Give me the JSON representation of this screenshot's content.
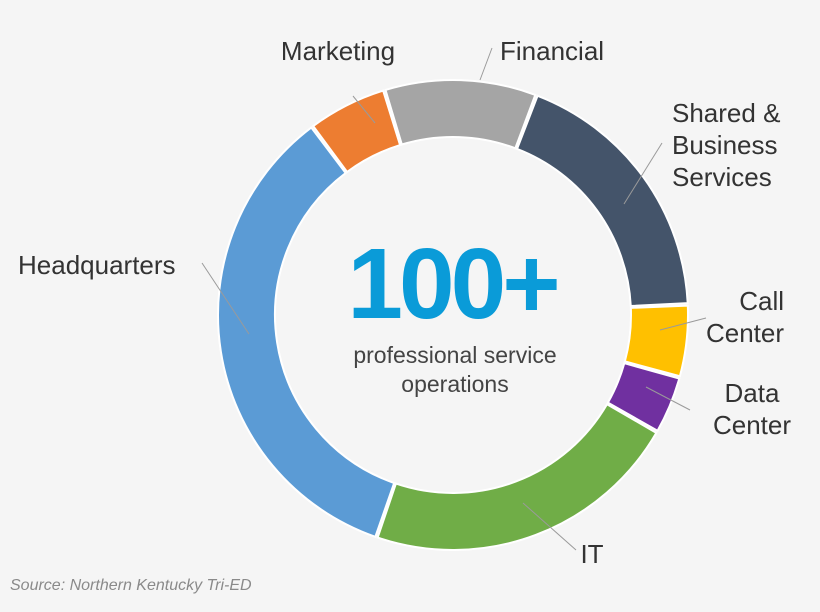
{
  "chart_data": {
    "type": "pie",
    "style": "donut",
    "center_value": "100+",
    "center_caption_lines": [
      "professional service",
      "operations"
    ],
    "unit": "percent of operations (estimated)",
    "slices": [
      {
        "label_lines": [
          "Financial"
        ],
        "value": 10.5,
        "color": "#a5a5a5"
      },
      {
        "label_lines": [
          "Shared &",
          "Business",
          "Services"
        ],
        "value": 18.5,
        "color": "#44546a"
      },
      {
        "label_lines": [
          "Call",
          "Center"
        ],
        "value": 5.0,
        "color": "#ffc000"
      },
      {
        "label_lines": [
          "Data",
          "Center"
        ],
        "value": 4.0,
        "color": "#7030a0"
      },
      {
        "label_lines": [
          "IT"
        ],
        "value": 22.0,
        "color": "#70ad47"
      },
      {
        "label_lines": [
          "Headquarters"
        ],
        "value": 34.5,
        "color": "#5b9bd5"
      },
      {
        "label_lines": [
          "Marketing"
        ],
        "value": 5.5,
        "color": "#ed7d31"
      }
    ],
    "legend": "labels placed outside ring with leader lines"
  },
  "source": "Source: Northern Kentucky Tri-ED"
}
